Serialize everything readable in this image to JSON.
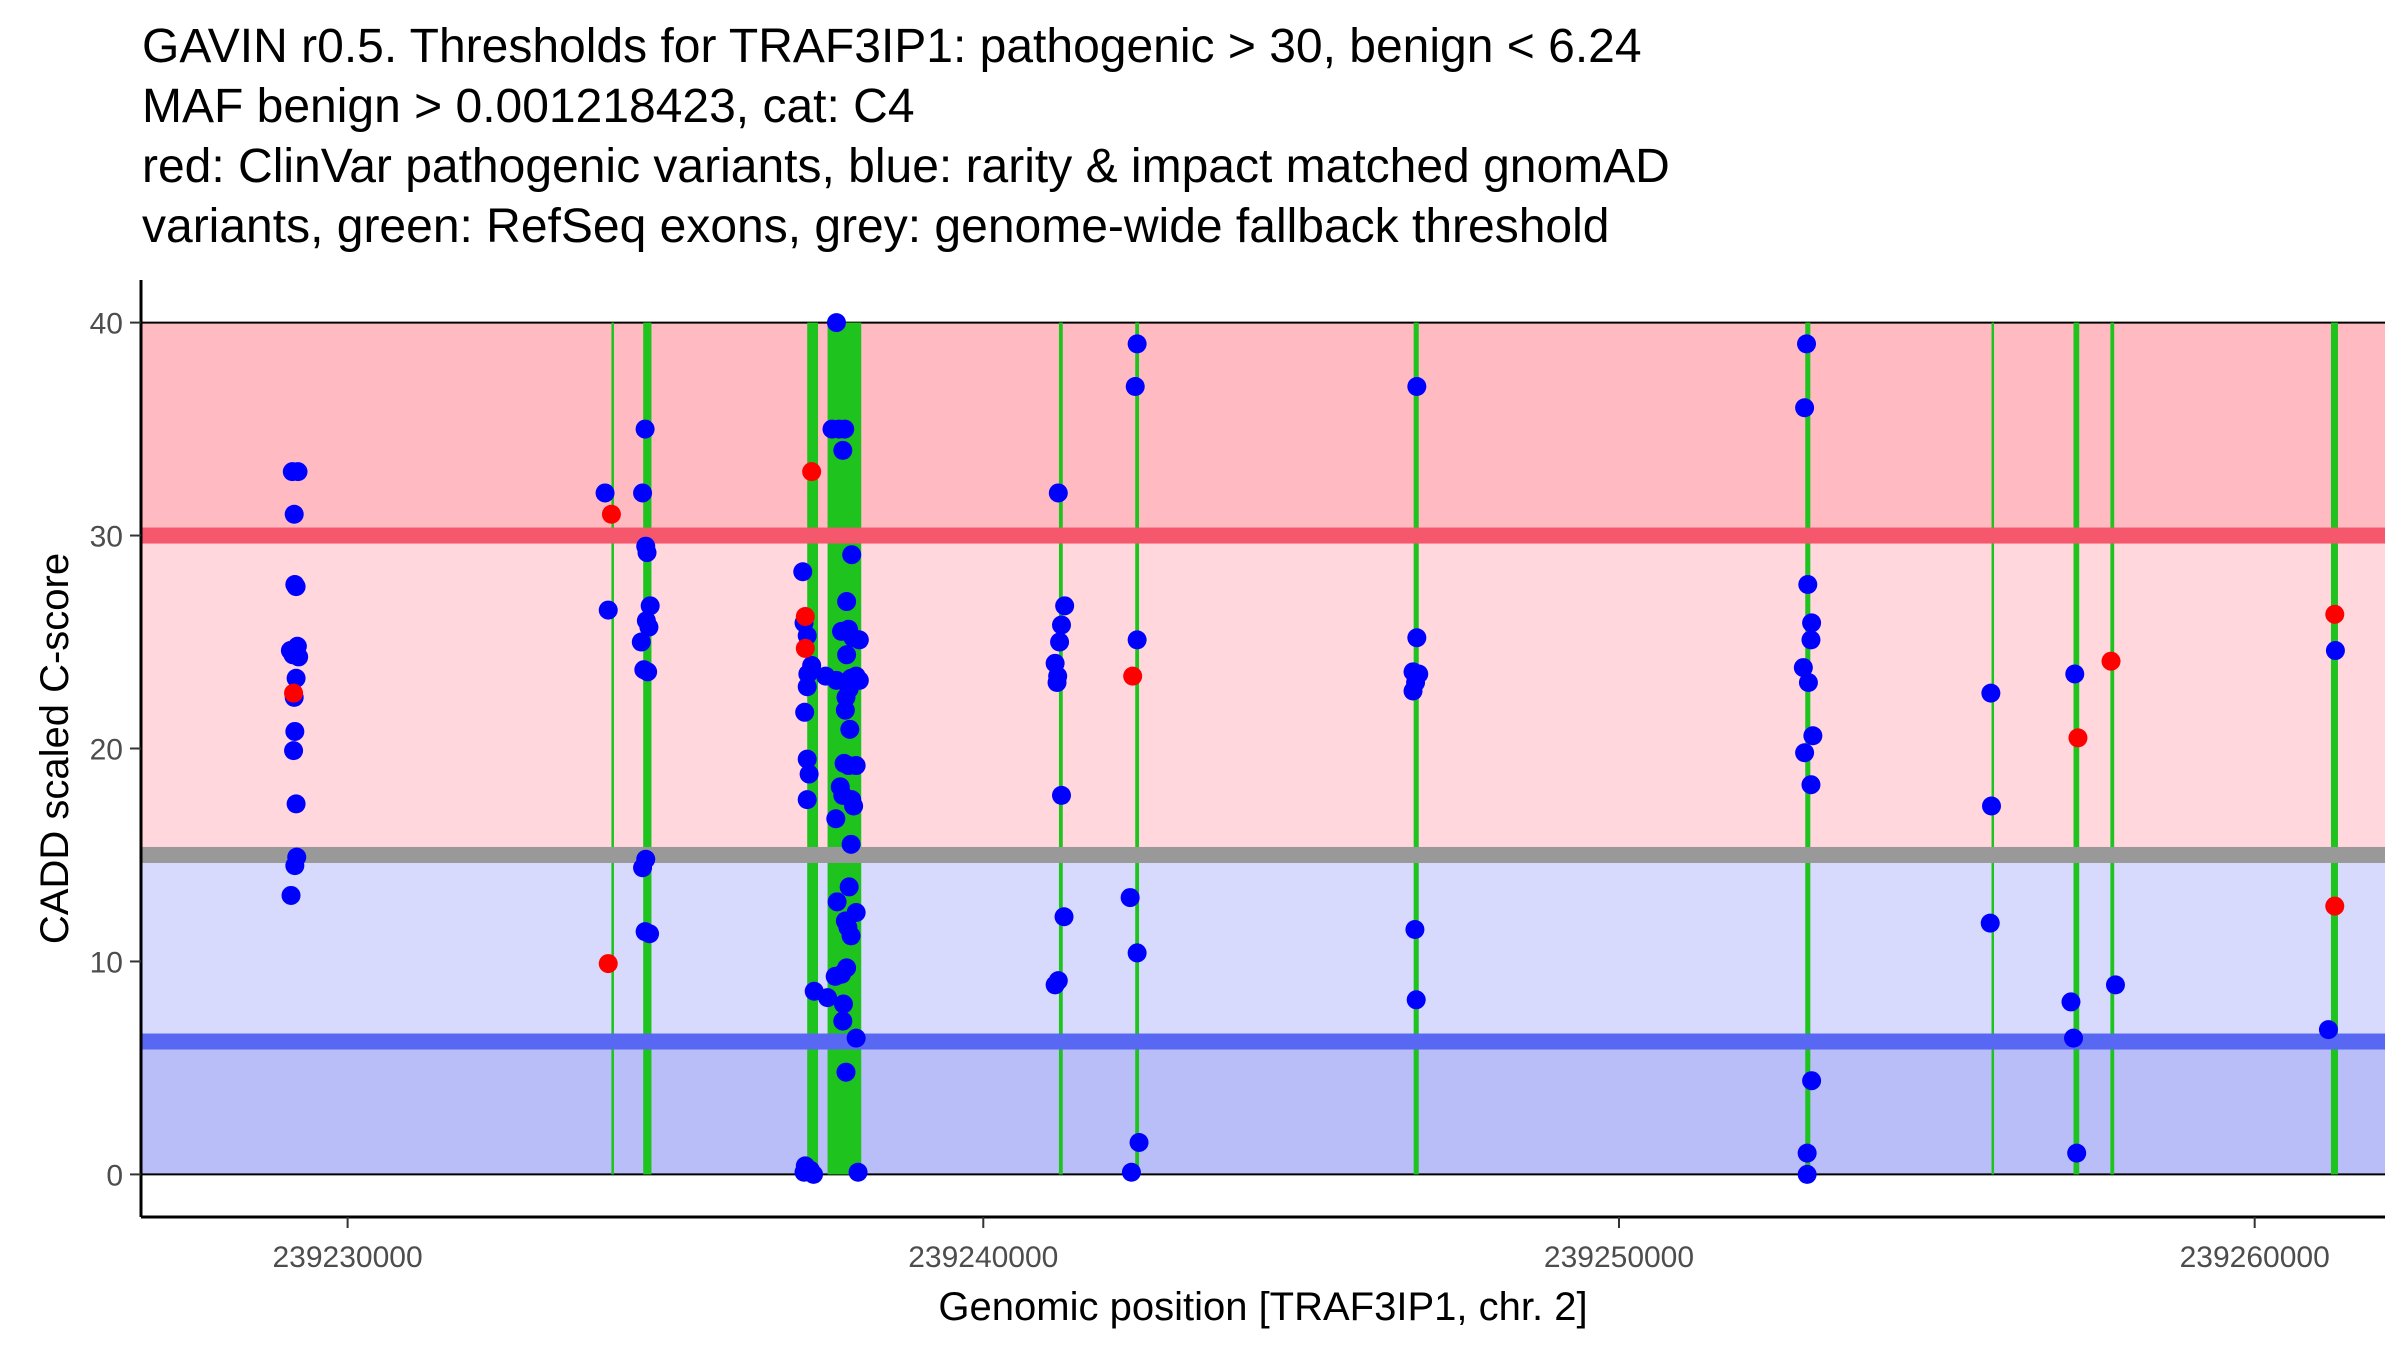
{
  "chart_data": {
    "type": "scatter",
    "title_lines": [
      "GAVIN r0.5. Thresholds for TRAF3IP1: pathogenic > 30, benign < 6.24",
      "MAF benign > 0.001218423, cat: C4",
      "red: ClinVar pathogenic variants, blue: rarity & impact matched gnomAD",
      "variants, green: RefSeq exons, grey: genome-wide fallback threshold"
    ],
    "xlabel": "Genomic position [TRAF3IP1, chr. 2]",
    "ylabel": "CADD scaled C-score",
    "xlim": [
      239226750,
      239262050
    ],
    "ylim": [
      -2,
      42
    ],
    "x_ticks": [
      239230000,
      239240000,
      239250000,
      239260000
    ],
    "y_ticks": [
      0,
      10,
      20,
      30,
      40
    ],
    "thresholds": {
      "pathogenic": 30,
      "genome_wide_fallback": 15,
      "benign": 6.24,
      "maf_benign": 0.001218423,
      "category": "C4"
    },
    "colors": {
      "pathogenic_region": "#FFBBC1",
      "middle_pathogenic_region": "#FFD7DD",
      "middle_benign_region": "#D7DAFC",
      "benign_region": "#B9BEF9",
      "pathogenic_line": "#F5576C",
      "fallback_line": "#999999",
      "benign_line": "#5968F2",
      "exon": "#1EC31E",
      "clinvar": "#FF0000",
      "gnomad": "#0000FF"
    },
    "exons": [
      [
        239234150,
        239234190
      ],
      [
        239234650,
        239234780
      ],
      [
        239237230,
        239237400
      ],
      [
        239237550,
        239238080
      ],
      [
        239241190,
        239241250
      ],
      [
        239242390,
        239242450
      ],
      [
        239246770,
        239246850
      ],
      [
        239252930,
        239253010
      ],
      [
        239255870,
        239255890
      ],
      [
        239257150,
        239257240
      ],
      [
        239257730,
        239257790
      ],
      [
        239261200,
        239261310
      ]
    ],
    "series": [
      {
        "name": "ClinVar pathogenic variants",
        "color": "#FF0000",
        "points": [
          [
            239229150,
            22.6
          ],
          [
            239234150,
            31.0
          ],
          [
            239234100,
            9.9
          ],
          [
            239237300,
            33.0
          ],
          [
            239237200,
            26.2
          ],
          [
            239237200,
            24.7
          ],
          [
            239242350,
            23.4
          ],
          [
            239257220,
            20.5
          ],
          [
            239257740,
            24.1
          ],
          [
            239261260,
            26.3
          ],
          [
            239261260,
            12.6
          ]
        ]
      },
      {
        "name": "rarity & impact matched gnomAD variants",
        "color": "#0000FF",
        "points": [
          [
            239229130,
            33.0
          ],
          [
            239229220,
            33.0
          ],
          [
            239229160,
            31.0
          ],
          [
            239229170,
            27.7
          ],
          [
            239229190,
            27.6
          ],
          [
            239229100,
            24.6
          ],
          [
            239229210,
            24.8
          ],
          [
            239229140,
            24.4
          ],
          [
            239229230,
            24.3
          ],
          [
            239229190,
            23.3
          ],
          [
            239229160,
            22.4
          ],
          [
            239229170,
            20.8
          ],
          [
            239229150,
            19.9
          ],
          [
            239229190,
            17.4
          ],
          [
            239229200,
            14.9
          ],
          [
            239229170,
            14.5
          ],
          [
            239229110,
            13.1
          ],
          [
            239234050,
            32.0
          ],
          [
            239234100,
            26.5
          ],
          [
            239234680,
            35.0
          ],
          [
            239234640,
            32.0
          ],
          [
            239234690,
            29.5
          ],
          [
            239234710,
            29.2
          ],
          [
            239234760,
            26.7
          ],
          [
            239234700,
            26.0
          ],
          [
            239234740,
            25.7
          ],
          [
            239234620,
            25.0
          ],
          [
            239234660,
            23.7
          ],
          [
            239234720,
            23.6
          ],
          [
            239234690,
            14.8
          ],
          [
            239234640,
            14.4
          ],
          [
            239234680,
            11.4
          ],
          [
            239234750,
            11.3
          ],
          [
            239237690,
            40.0
          ],
          [
            239237620,
            35.0
          ],
          [
            239237730,
            35.0
          ],
          [
            239237820,
            35.0
          ],
          [
            239237790,
            34.0
          ],
          [
            239237160,
            28.3
          ],
          [
            239237930,
            29.1
          ],
          [
            239237850,
            26.9
          ],
          [
            239237180,
            25.9
          ],
          [
            239237230,
            25.3
          ],
          [
            239237770,
            25.5
          ],
          [
            239237880,
            25.6
          ],
          [
            239237950,
            25.2
          ],
          [
            239238050,
            25.1
          ],
          [
            239237850,
            24.4
          ],
          [
            239237300,
            23.9
          ],
          [
            239237240,
            23.5
          ],
          [
            239237520,
            23.4
          ],
          [
            239237690,
            23.2
          ],
          [
            239237920,
            23.3
          ],
          [
            239238000,
            23.4
          ],
          [
            239238050,
            23.2
          ],
          [
            239237230,
            22.9
          ],
          [
            239237840,
            22.4
          ],
          [
            239237890,
            22.8
          ],
          [
            239237830,
            21.8
          ],
          [
            239237190,
            21.7
          ],
          [
            239237900,
            20.9
          ],
          [
            239237230,
            19.5
          ],
          [
            239237880,
            19.2
          ],
          [
            239237810,
            19.3
          ],
          [
            239238000,
            19.2
          ],
          [
            239237260,
            18.8
          ],
          [
            239237750,
            18.2
          ],
          [
            239237790,
            17.8
          ],
          [
            239237930,
            17.6
          ],
          [
            239237230,
            17.6
          ],
          [
            239237960,
            17.3
          ],
          [
            239237680,
            16.7
          ],
          [
            239237920,
            15.5
          ],
          [
            239237890,
            13.5
          ],
          [
            239237700,
            12.8
          ],
          [
            239238000,
            12.3
          ],
          [
            239237830,
            11.9
          ],
          [
            239237870,
            11.6
          ],
          [
            239237920,
            11.2
          ],
          [
            239237850,
            9.7
          ],
          [
            239237670,
            9.3
          ],
          [
            239237770,
            9.4
          ],
          [
            239237340,
            8.6
          ],
          [
            239237550,
            8.3
          ],
          [
            239237800,
            8.0
          ],
          [
            239237790,
            7.2
          ],
          [
            239238000,
            6.4
          ],
          [
            239237840,
            4.8
          ],
          [
            239237200,
            0.4
          ],
          [
            239237280,
            0.2
          ],
          [
            239237180,
            0.1
          ],
          [
            239237330,
            0.0
          ],
          [
            239238030,
            0.1
          ],
          [
            239241180,
            32.0
          ],
          [
            239241280,
            26.7
          ],
          [
            239241230,
            25.8
          ],
          [
            239241200,
            25.0
          ],
          [
            239241130,
            24.0
          ],
          [
            239241170,
            23.4
          ],
          [
            239241160,
            23.1
          ],
          [
            239241230,
            17.8
          ],
          [
            239241270,
            12.1
          ],
          [
            239241180,
            9.1
          ],
          [
            239241130,
            8.9
          ],
          [
            239242420,
            39.0
          ],
          [
            239242390,
            37.0
          ],
          [
            239242420,
            25.1
          ],
          [
            239242310,
            13.0
          ],
          [
            239242420,
            10.4
          ],
          [
            239242450,
            1.5
          ],
          [
            239242330,
            0.1
          ],
          [
            239246820,
            37.0
          ],
          [
            239246820,
            25.2
          ],
          [
            239246760,
            23.6
          ],
          [
            239246850,
            23.5
          ],
          [
            239246800,
            23.1
          ],
          [
            239246760,
            22.7
          ],
          [
            239246790,
            11.5
          ],
          [
            239246810,
            8.2
          ],
          [
            239252950,
            39.0
          ],
          [
            239252920,
            36.0
          ],
          [
            239252970,
            27.7
          ],
          [
            239253030,
            25.9
          ],
          [
            239253020,
            25.1
          ],
          [
            239252900,
            23.8
          ],
          [
            239252980,
            23.1
          ],
          [
            239253050,
            20.6
          ],
          [
            239252920,
            19.8
          ],
          [
            239253020,
            18.3
          ],
          [
            239253030,
            4.4
          ],
          [
            239252960,
            1.0
          ],
          [
            239252960,
            0.0
          ],
          [
            239255850,
            22.6
          ],
          [
            239255860,
            17.3
          ],
          [
            239255840,
            11.8
          ],
          [
            239257170,
            23.5
          ],
          [
            239257110,
            8.1
          ],
          [
            239257150,
            6.4
          ],
          [
            239257200,
            1.0
          ],
          [
            239257810,
            8.9
          ],
          [
            239261270,
            24.6
          ],
          [
            239261160,
            6.8
          ]
        ]
      }
    ]
  }
}
